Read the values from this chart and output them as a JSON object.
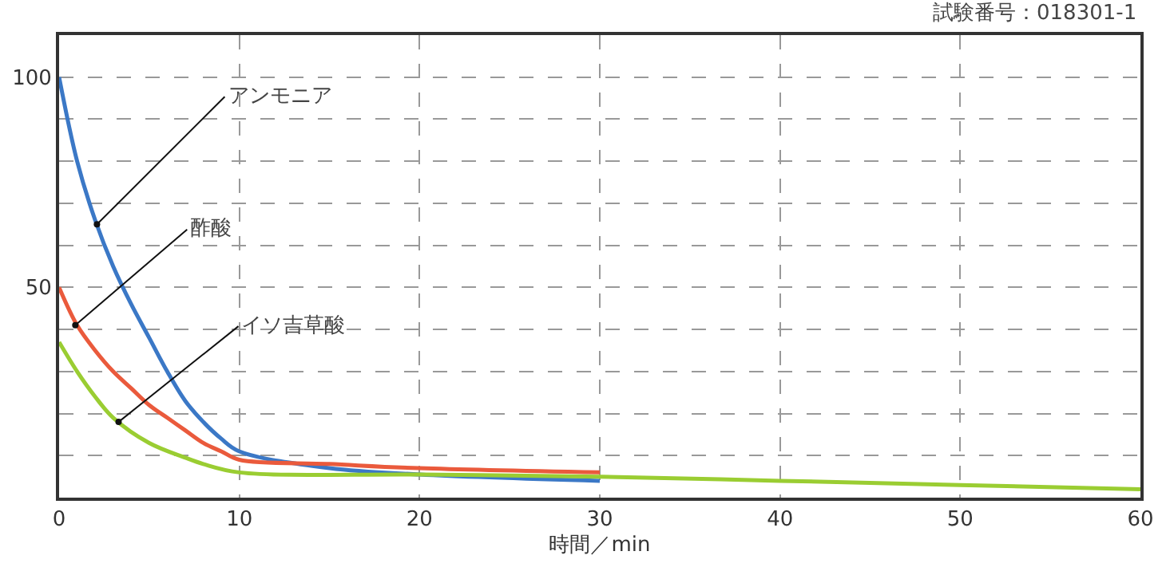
{
  "chart_data": {
    "type": "line",
    "xlabel": "時間／min",
    "series": [
      {
        "color": "#3b78c6",
        "x": [
          0,
          1,
          2,
          3,
          4,
          5,
          6,
          7,
          8,
          9,
          10,
          15,
          20,
          30
        ],
        "values": [
          100,
          80,
          66,
          55,
          46,
          38,
          30,
          23,
          18,
          14,
          11,
          7,
          5.5,
          4
        ]
      },
      {
        "color": "#ea5a3c",
        "x": [
          0,
          1,
          2,
          3,
          4,
          5,
          6,
          7,
          8,
          9,
          10,
          15,
          20,
          30
        ],
        "values": [
          50,
          41,
          35,
          30,
          26,
          22,
          19,
          16,
          13,
          11,
          9,
          8,
          7,
          6
        ]
      },
      {
        "color": "#9acd32",
        "x": [
          0,
          1,
          2,
          3,
          5,
          7,
          8,
          10,
          20,
          30,
          40,
          50,
          60
        ],
        "values": [
          37,
          30,
          24,
          19,
          13,
          9.5,
          8,
          6,
          5.5,
          5,
          4,
          3,
          2
        ]
      }
    ],
    "xlim": [
      0,
      60
    ],
    "xticks": [
      0,
      10,
      20,
      30,
      40,
      50,
      60
    ],
    "ylim": [
      0,
      110
    ],
    "yticks": [
      {
        "value": 10,
        "label": null
      },
      {
        "value": 20,
        "label": null
      },
      {
        "value": 30,
        "label": null
      },
      {
        "value": 40,
        "label": null
      },
      50,
      {
        "value": 60,
        "label": null
      },
      {
        "value": 70,
        "label": null
      },
      {
        "value": 80,
        "label": null
      },
      {
        "value": 90,
        "label": null
      },
      100
    ],
    "grid": true,
    "marker": "none",
    "line_style": "solid",
    "annotations": [
      {
        "text": "アンモニア",
        "x": 2.1,
        "y": 65
      },
      {
        "text": "酢酸",
        "x": 0.9,
        "y": 41
      },
      {
        "text": "イソ吉草酸",
        "x": 3.3,
        "y": 18
      },
      "試験番号：018301-1"
    ]
  }
}
